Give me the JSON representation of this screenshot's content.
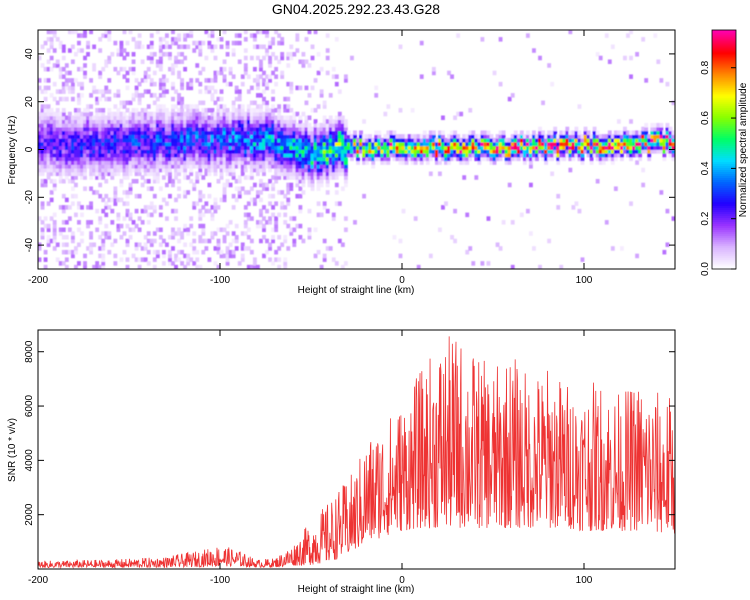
{
  "chart_data": [
    {
      "type": "heatmap",
      "title": "GN04.2025.292.23.43.G28",
      "xlabel": "Height of straight line (km)",
      "ylabel": "Frequency (Hz)",
      "xlim": [
        -200,
        150
      ],
      "ylim": [
        -50,
        50
      ],
      "xticks": [
        -200,
        -100,
        0,
        100
      ],
      "yticks": [
        -40,
        -20,
        0,
        20,
        40
      ],
      "colorbar": {
        "label": "Normalized spectral amplitude",
        "range": [
          0,
          0.95
        ],
        "ticks": [
          "0.0",
          "0.2",
          "0.4",
          "0.6",
          "0.8"
        ],
        "colormap": [
          "#ffffff",
          "#d9b3ff",
          "#9933ff",
          "#2200ff",
          "#0066ff",
          "#00ddff",
          "#00ff66",
          "#88ff00",
          "#ffff00",
          "#ff8800",
          "#ff0000",
          "#ff00aa"
        ]
      },
      "ridge": {
        "description": "dominant frequency ridge vs height",
        "x": [
          -200,
          -150,
          -100,
          -80,
          -60,
          -50,
          -40,
          -30,
          -20,
          0,
          50,
          100,
          150
        ],
        "y": [
          2,
          3,
          4,
          5,
          1,
          -2,
          0,
          1,
          1,
          1,
          1,
          2,
          3
        ],
        "peak_amplitude": [
          0.25,
          0.3,
          0.35,
          0.4,
          0.45,
          0.5,
          0.55,
          0.65,
          0.7,
          0.8,
          0.85,
          0.85,
          0.9
        ]
      }
    },
    {
      "type": "line",
      "xlabel": "Height of straight line (km)",
      "ylabel": "SNR (10 * v/v)",
      "xlim": [
        -200,
        150
      ],
      "ylim": [
        0,
        8800
      ],
      "xticks": [
        -200,
        -100,
        0,
        100
      ],
      "yticks": [
        2000,
        4000,
        6000,
        8000
      ],
      "color": "#ee3333",
      "series": [
        {
          "name": "SNR",
          "envelope_x": [
            -200,
            -160,
            -130,
            -110,
            -100,
            -90,
            -80,
            -70,
            -60,
            -50,
            -40,
            -30,
            -25,
            -20,
            -10,
            0,
            10,
            20,
            30,
            40,
            50,
            60,
            70,
            80,
            90,
            100,
            110,
            120,
            130,
            140,
            150
          ],
          "envelope_min": [
            50,
            50,
            60,
            80,
            100,
            100,
            60,
            60,
            120,
            150,
            250,
            500,
            700,
            900,
            1200,
            1400,
            1500,
            1500,
            1500,
            1500,
            1500,
            1500,
            1500,
            1500,
            1500,
            1400,
            1400,
            1400,
            1400,
            1300,
            1300
          ],
          "envelope_max": [
            300,
            350,
            450,
            700,
            900,
            700,
            350,
            400,
            900,
            1800,
            2500,
            3300,
            3800,
            4800,
            5500,
            6200,
            7300,
            8400,
            8700,
            8000,
            7400,
            8000,
            7200,
            7500,
            7000,
            6800,
            7000,
            6500,
            7000,
            6600,
            6400
          ]
        }
      ]
    }
  ]
}
